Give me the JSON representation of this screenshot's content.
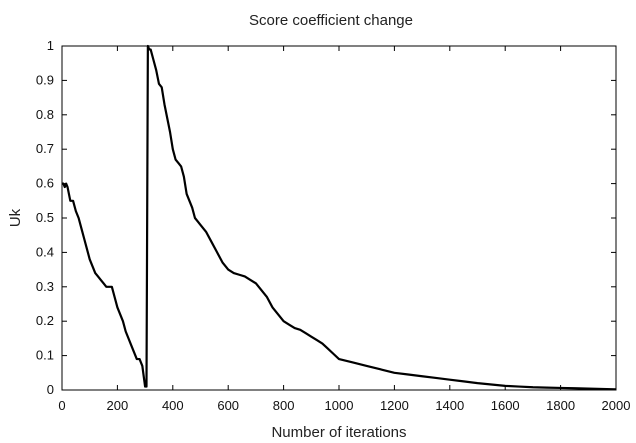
{
  "chart_data": {
    "type": "line",
    "title": "Score coefficient change",
    "xlabel": "Number of iterations",
    "ylabel": "Uk",
    "xlim": [
      0,
      2000
    ],
    "ylim": [
      0,
      1
    ],
    "xticks": [
      0,
      200,
      400,
      600,
      800,
      1000,
      1200,
      1400,
      1600,
      1800,
      2000
    ],
    "yticks": [
      0,
      0.1,
      0.2,
      0.3,
      0.4,
      0.5,
      0.6,
      0.7,
      0.8,
      0.9,
      1
    ],
    "xtick_labels": [
      "0",
      "200",
      "400",
      "600",
      "800",
      "1000",
      "1200",
      "1400",
      "1600",
      "1800",
      "2000"
    ],
    "ytick_labels": [
      "0",
      "0.1",
      "0.2",
      "0.3",
      "0.4",
      "0.5",
      "0.6",
      "0.7",
      "0.8",
      "0.9",
      "1"
    ],
    "grid": false,
    "series": [
      {
        "color": "#000000",
        "x": [
          0,
          5,
          10,
          15,
          20,
          25,
          30,
          40,
          50,
          60,
          70,
          80,
          90,
          100,
          110,
          120,
          130,
          140,
          150,
          160,
          170,
          180,
          190,
          200,
          210,
          220,
          230,
          240,
          250,
          260,
          270,
          280,
          290,
          300,
          305,
          310,
          315,
          320,
          330,
          340,
          350,
          360,
          370,
          380,
          390,
          400,
          410,
          420,
          430,
          440,
          450,
          460,
          470,
          480,
          490,
          500,
          520,
          540,
          560,
          580,
          600,
          620,
          640,
          660,
          680,
          700,
          720,
          740,
          760,
          780,
          800,
          820,
          840,
          860,
          880,
          900,
          920,
          940,
          960,
          980,
          1000,
          1050,
          1100,
          1150,
          1200,
          1250,
          1300,
          1350,
          1400,
          1450,
          1500,
          1550,
          1600,
          1650,
          1700,
          1750,
          1800,
          1850,
          1900,
          1950,
          2000
        ],
        "y": [
          0.6,
          0.6,
          0.59,
          0.6,
          0.59,
          0.57,
          0.55,
          0.55,
          0.52,
          0.5,
          0.47,
          0.44,
          0.41,
          0.38,
          0.36,
          0.34,
          0.33,
          0.32,
          0.31,
          0.3,
          0.3,
          0.3,
          0.27,
          0.24,
          0.22,
          0.2,
          0.17,
          0.15,
          0.13,
          0.11,
          0.09,
          0.09,
          0.07,
          0.01,
          0.01,
          1.0,
          0.99,
          0.99,
          0.96,
          0.93,
          0.89,
          0.88,
          0.83,
          0.79,
          0.75,
          0.7,
          0.67,
          0.66,
          0.65,
          0.62,
          0.57,
          0.55,
          0.53,
          0.5,
          0.49,
          0.48,
          0.46,
          0.43,
          0.4,
          0.37,
          0.35,
          0.34,
          0.335,
          0.33,
          0.32,
          0.31,
          0.29,
          0.27,
          0.24,
          0.22,
          0.2,
          0.19,
          0.18,
          0.175,
          0.165,
          0.155,
          0.145,
          0.135,
          0.12,
          0.105,
          0.09,
          0.08,
          0.07,
          0.06,
          0.05,
          0.045,
          0.04,
          0.035,
          0.03,
          0.025,
          0.02,
          0.016,
          0.012,
          0.01,
          0.008,
          0.007,
          0.006,
          0.005,
          0.004,
          0.003,
          0.002
        ]
      }
    ]
  }
}
